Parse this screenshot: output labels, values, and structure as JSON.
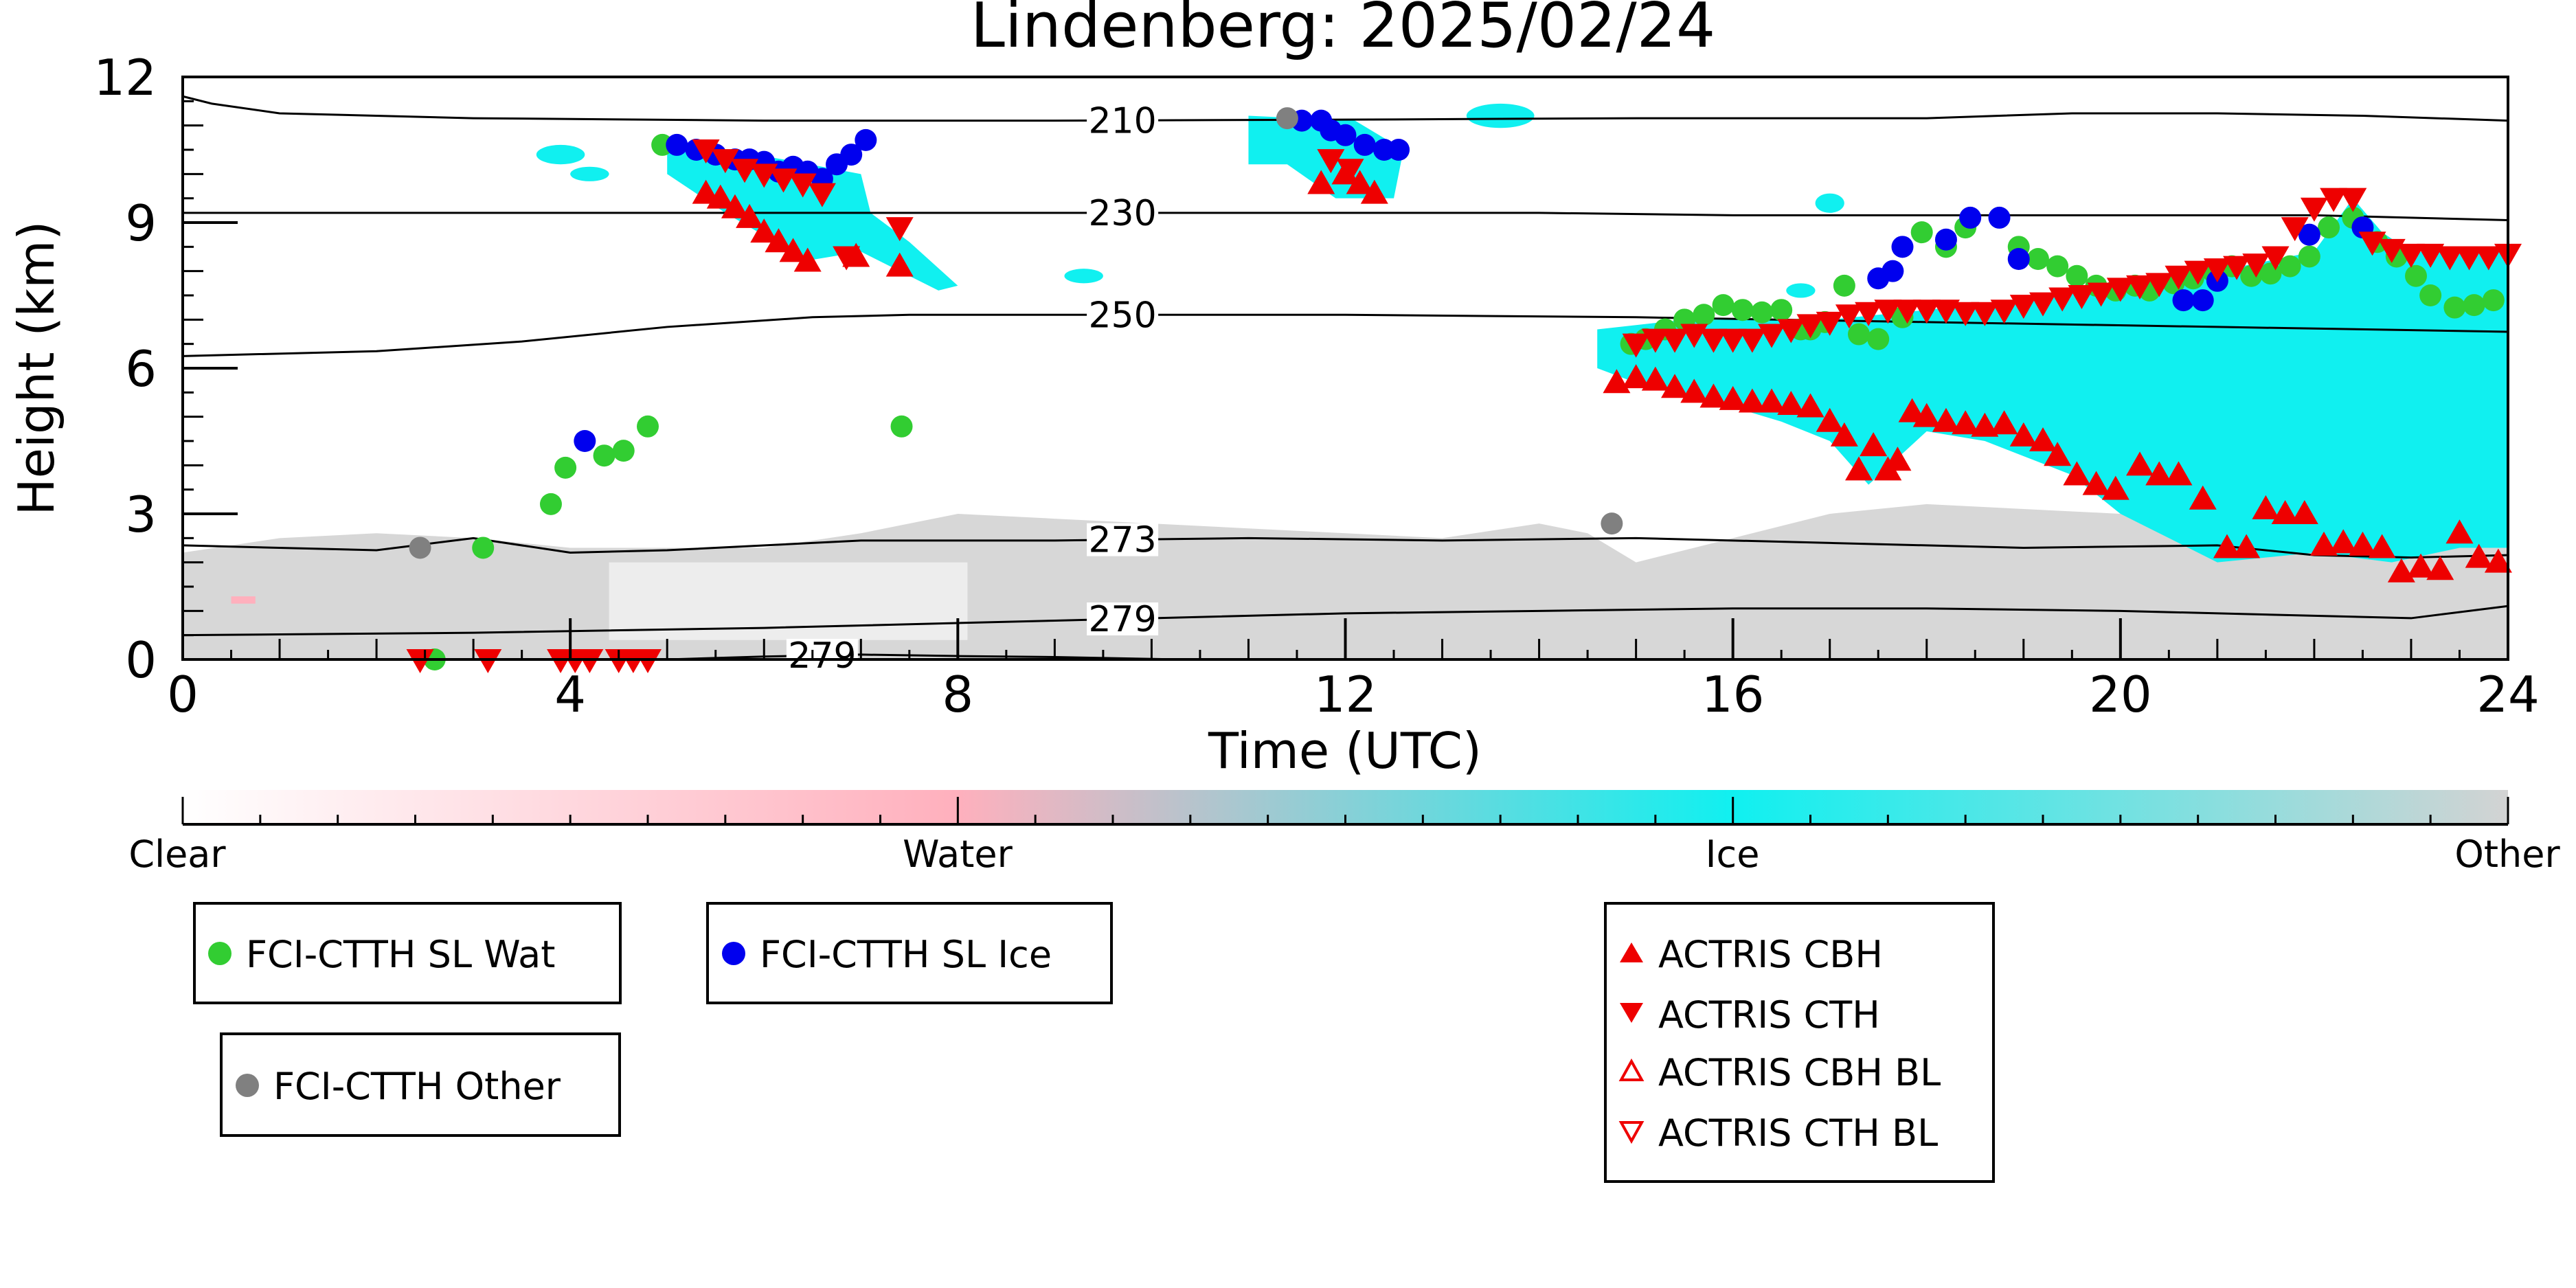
{
  "chart_data": {
    "type": "scatter",
    "title": "Lindenberg: 2025/02/24",
    "xlabel": "Time (UTC)",
    "ylabel": "Height (km)",
    "xlim": [
      0,
      24
    ],
    "ylim": [
      0,
      12
    ],
    "xticks": [
      0,
      4,
      8,
      12,
      16,
      20,
      24
    ],
    "yticks": [
      0,
      3,
      6,
      9,
      12
    ],
    "grid": false,
    "colorbar": {
      "labels": [
        "Clear",
        "Water",
        "Ice",
        "Other"
      ],
      "colors": [
        "#ffffff",
        "#ffb0bd",
        "#10f0f0",
        "#d3d3d3"
      ]
    },
    "isotherms": [
      {
        "label": "210",
        "label_x": 9.7,
        "x": [
          0,
          0.3,
          1,
          3,
          6,
          9,
          12,
          15,
          18,
          19.5,
          21,
          22.5,
          24
        ],
        "y": [
          11.6,
          11.45,
          11.25,
          11.15,
          11.1,
          11.1,
          11.12,
          11.15,
          11.15,
          11.25,
          11.25,
          11.2,
          11.1
        ]
      },
      {
        "label": "230",
        "label_x": 9.7,
        "x": [
          0,
          2,
          4,
          6,
          8,
          10,
          12,
          14,
          16,
          18,
          20,
          22,
          24
        ],
        "y": [
          9.2,
          9.2,
          9.2,
          9.2,
          9.2,
          9.2,
          9.2,
          9.2,
          9.15,
          9.15,
          9.15,
          9.15,
          9.05
        ]
      },
      {
        "label": "250",
        "label_x": 9.7,
        "x": [
          0,
          2,
          3.5,
          5,
          6.5,
          7.5,
          9,
          12,
          15,
          18,
          21,
          24
        ],
        "y": [
          6.25,
          6.35,
          6.55,
          6.85,
          7.05,
          7.1,
          7.1,
          7.1,
          7.05,
          6.95,
          6.85,
          6.75
        ]
      },
      {
        "label": "273",
        "label_x": 9.7,
        "x": [
          0,
          2,
          3,
          4,
          5,
          7,
          9,
          11,
          13,
          15,
          17,
          19,
          21,
          22,
          23,
          24
        ],
        "y": [
          2.35,
          2.25,
          2.5,
          2.2,
          2.25,
          2.45,
          2.45,
          2.5,
          2.45,
          2.5,
          2.4,
          2.3,
          2.35,
          2.15,
          2.1,
          2.15
        ]
      },
      {
        "label": "279",
        "label_x": 9.7,
        "x": [
          0,
          3,
          6,
          9,
          12,
          14,
          16,
          18,
          20,
          22,
          23,
          24
        ],
        "y": [
          0.5,
          0.55,
          0.65,
          0.8,
          0.95,
          1.0,
          1.05,
          1.05,
          1.0,
          0.9,
          0.85,
          1.1
        ]
      },
      {
        "label": "279",
        "label_x": 6.6,
        "x": [
          5.0,
          6.0,
          7.0,
          8.0,
          9.0,
          10.3
        ],
        "y": [
          0.0,
          0.06,
          0.1,
          0.07,
          0.05,
          0.0
        ]
      }
    ],
    "series": [
      {
        "name": "FCI-CTTH SL Wat",
        "marker": "circle",
        "color": "#32cd32",
        "x": [
          2.6,
          3.1,
          3.8,
          3.95,
          4.35,
          4.55,
          4.8,
          4.95,
          7.42,
          14.95,
          15.1,
          15.3,
          15.5,
          15.7,
          15.9,
          16.1,
          16.3,
          16.5,
          16.7,
          16.8,
          16.95,
          17.15,
          17.3,
          17.5,
          17.75,
          17.95,
          18.2,
          18.4,
          18.95,
          19.15,
          19.35,
          19.55,
          19.75,
          19.95,
          20.15,
          20.3,
          20.55,
          20.75,
          20.95,
          21.15,
          21.35,
          21.55,
          21.75,
          21.95,
          22.15,
          22.4,
          22.65,
          22.85,
          23.05,
          23.2,
          23.45,
          23.65,
          23.85
        ],
        "y": [
          0.0,
          2.3,
          3.2,
          3.95,
          4.2,
          4.3,
          4.8,
          10.6,
          4.8,
          6.5,
          6.6,
          6.8,
          7.0,
          7.1,
          7.3,
          7.2,
          7.15,
          7.2,
          6.8,
          6.8,
          6.95,
          7.7,
          6.7,
          6.6,
          7.05,
          8.8,
          8.5,
          8.9,
          8.5,
          8.25,
          8.1,
          7.9,
          7.7,
          7.6,
          7.7,
          7.6,
          7.75,
          7.85,
          8.0,
          8.1,
          7.9,
          7.95,
          8.1,
          8.3,
          8.9,
          9.1,
          8.6,
          8.3,
          7.9,
          7.5,
          7.25,
          7.3,
          7.4
        ]
      },
      {
        "name": "FCI-CTTH SL Ice",
        "marker": "circle",
        "color": "#0000ee",
        "x": [
          4.15,
          5.1,
          5.3,
          5.5,
          5.7,
          5.85,
          6.0,
          6.15,
          6.3,
          6.45,
          6.6,
          6.75,
          6.9,
          7.05,
          11.55,
          11.75,
          11.85,
          12.0,
          12.2,
          12.4,
          12.55,
          17.5,
          17.65,
          17.75,
          18.2,
          18.45,
          18.75,
          18.95,
          20.65,
          20.85,
          21.0,
          21.95,
          22.5
        ],
        "y": [
          4.5,
          10.6,
          10.5,
          10.4,
          10.3,
          10.3,
          10.25,
          10.05,
          10.15,
          10.05,
          9.9,
          10.2,
          10.4,
          10.7,
          11.1,
          11.1,
          10.9,
          10.8,
          10.6,
          10.5,
          10.5,
          7.85,
          8.0,
          8.5,
          8.65,
          9.1,
          9.1,
          8.25,
          7.4,
          7.4,
          7.8,
          8.75,
          8.9
        ]
      },
      {
        "name": "FCI-CTTH Other",
        "marker": "circle",
        "color": "#808080",
        "x": [
          2.45,
          11.4,
          14.75
        ],
        "y": [
          2.3,
          11.15,
          2.8
        ]
      },
      {
        "name": "ACTRIS CBH",
        "marker": "triangle-up",
        "color": "#ee0000",
        "x": [
          5.4,
          5.55,
          5.7,
          5.85,
          6.0,
          6.15,
          6.3,
          6.45,
          6.95,
          7.4,
          11.75,
          12.0,
          12.15,
          12.3,
          14.8,
          15.0,
          15.2,
          15.4,
          15.6,
          15.8,
          16.0,
          16.2,
          16.4,
          16.6,
          16.8,
          17.0,
          17.15,
          17.3,
          17.45,
          17.6,
          17.7,
          17.85,
          18.0,
          18.2,
          18.4,
          18.6,
          18.8,
          19.0,
          19.2,
          19.35,
          19.55,
          19.75,
          19.95,
          20.2,
          20.4,
          20.6,
          20.85,
          21.1,
          21.3,
          21.5,
          21.7,
          21.9,
          22.1,
          22.3,
          22.5,
          22.7,
          22.9,
          23.1,
          23.3,
          23.5,
          23.7,
          23.9
        ],
        "y": [
          9.6,
          9.5,
          9.3,
          9.1,
          8.8,
          8.6,
          8.4,
          8.2,
          8.3,
          8.1,
          9.8,
          10.0,
          9.8,
          9.6,
          5.7,
          5.8,
          5.75,
          5.6,
          5.5,
          5.4,
          5.35,
          5.3,
          5.3,
          5.25,
          5.2,
          4.9,
          4.6,
          3.9,
          4.4,
          3.9,
          4.1,
          5.1,
          5.0,
          4.9,
          4.85,
          4.8,
          4.85,
          4.6,
          4.5,
          4.2,
          3.8,
          3.6,
          3.5,
          4.0,
          3.8,
          3.8,
          3.3,
          2.3,
          2.3,
          3.1,
          3.0,
          3.0,
          2.35,
          2.4,
          2.35,
          2.3,
          1.8,
          1.9,
          1.85,
          2.6,
          2.1,
          2.0
        ]
      },
      {
        "name": "ACTRIS CTH",
        "marker": "triangle-down",
        "color": "#ee0000",
        "x": [
          2.45,
          3.15,
          3.9,
          4.05,
          4.2,
          4.5,
          4.65,
          4.8,
          5.4,
          5.6,
          5.8,
          6.0,
          6.2,
          6.4,
          6.6,
          6.85,
          7.4,
          11.85,
          12.05,
          15.0,
          15.2,
          15.4,
          15.6,
          15.8,
          16.0,
          16.2,
          16.4,
          16.6,
          16.8,
          17.0,
          17.2,
          17.4,
          17.6,
          17.8,
          18.0,
          18.2,
          18.4,
          18.6,
          18.8,
          19.0,
          19.2,
          19.4,
          19.6,
          19.8,
          20.0,
          20.2,
          20.4,
          20.6,
          20.8,
          21.0,
          21.2,
          21.4,
          21.6,
          21.8,
          22.0,
          22.2,
          22.4,
          22.6,
          22.8,
          23.0,
          23.2,
          23.4,
          23.6,
          23.8,
          24.0
        ],
        "y": [
          0.0,
          0.0,
          0.0,
          0.0,
          0.0,
          0.0,
          0.0,
          0.0,
          10.5,
          10.3,
          10.1,
          10.0,
          9.9,
          9.8,
          9.6,
          8.3,
          8.9,
          10.3,
          10.1,
          6.5,
          6.6,
          6.6,
          6.7,
          6.6,
          6.6,
          6.6,
          6.7,
          6.8,
          6.9,
          6.95,
          7.1,
          7.15,
          7.2,
          7.2,
          7.2,
          7.2,
          7.15,
          7.15,
          7.2,
          7.3,
          7.35,
          7.45,
          7.5,
          7.55,
          7.65,
          7.7,
          7.75,
          7.9,
          8.0,
          8.05,
          8.1,
          8.15,
          8.3,
          8.9,
          9.3,
          9.5,
          9.5,
          8.6,
          8.45,
          8.35,
          8.35,
          8.3,
          8.3,
          8.3,
          8.35
        ]
      },
      {
        "name": "ACTRIS CBH BL",
        "marker": "triangle-up-open",
        "color": "#ee0000",
        "x": [],
        "y": []
      },
      {
        "name": "ACTRIS CTH BL",
        "marker": "triangle-down-open",
        "color": "#ee0000",
        "x": [],
        "y": []
      }
    ],
    "legend_groups": [
      {
        "placement": "below-left",
        "items": [
          "FCI-CTTH SL Wat"
        ]
      },
      {
        "placement": "below-left-center",
        "items": [
          "FCI-CTTH SL Ice"
        ]
      },
      {
        "placement": "below-left-second-row",
        "items": [
          "FCI-CTTH Other"
        ]
      },
      {
        "placement": "below-right",
        "items": [
          "ACTRIS CBH",
          "ACTRIS CTH",
          "ACTRIS CBH BL",
          "ACTRIS CTH BL"
        ]
      }
    ]
  }
}
